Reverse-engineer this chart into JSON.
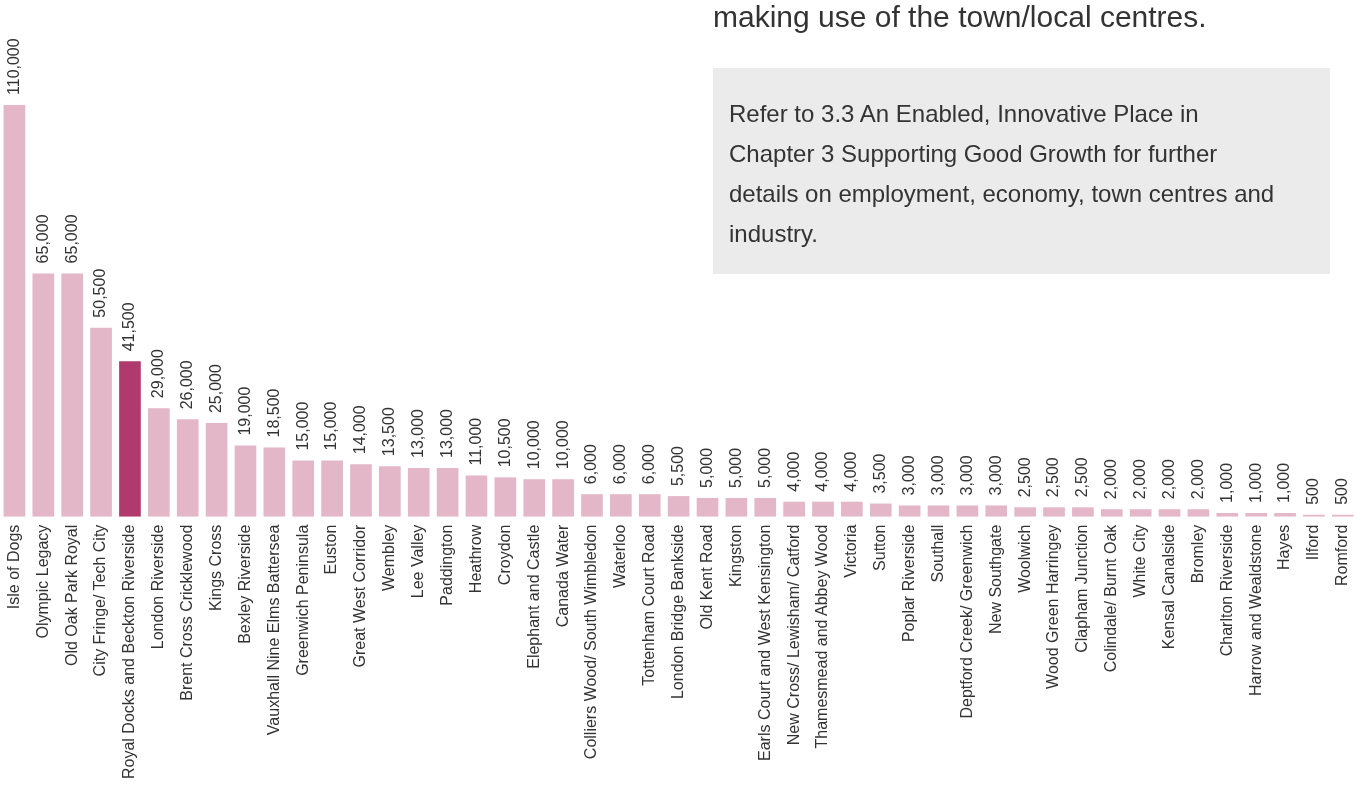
{
  "chart_data": {
    "type": "bar",
    "categories": [
      "Isle of Dogs",
      "Olympic Legacy",
      "Old Oak Park Royal",
      "City Fringe/ Tech City",
      "Royal Docks and Beckton Riverside",
      "London Riverside",
      "Brent Cross Cricklewood",
      "Kings Cross",
      "Bexley Riverside",
      "Vauxhall Nine Elms Battersea",
      "Greenwich Peninsula",
      "Euston",
      "Great West Corridor",
      "Wembley",
      "Lee Valley",
      "Paddington",
      "Heathrow",
      "Croydon",
      "Elephant and Castle",
      "Canada Water",
      "Colliers Wood/ South Wimbledon",
      "Waterloo",
      "Tottenham Court Road",
      "London Bridge Bankside",
      "Old Kent Road",
      "Kingston",
      "Earls Court and West Kensington",
      "New Cross/ Lewisham/ Catford",
      "Thamesmead and Abbey Wood",
      "Victoria",
      "Sutton",
      "Poplar Riverside",
      "Southall",
      "Deptford Creek/ Greenwich",
      "New Southgate",
      "Woolwich",
      "Wood Green Harringey",
      "Clapham Junction",
      "Colindale/ Burnt Oak",
      "White City",
      "Kensal Canalside",
      "Bromley",
      "Charlton Riverside",
      "Harrow and Wealdstone",
      "Hayes",
      "Ilford",
      "Romford"
    ],
    "values": [
      110000,
      65000,
      65000,
      50500,
      41500,
      29000,
      26000,
      25000,
      19000,
      18500,
      15000,
      15000,
      14000,
      13500,
      13000,
      13000,
      11000,
      10500,
      10000,
      10000,
      6000,
      6000,
      6000,
      5500,
      5000,
      5000,
      5000,
      4000,
      4000,
      4000,
      3500,
      3000,
      3000,
      3000,
      3000,
      2500,
      2500,
      2500,
      2000,
      2000,
      2000,
      2000,
      1000,
      1000,
      1000,
      500,
      500
    ],
    "colors": [
      "#e3b6c8",
      "#e3b6c8",
      "#e3b6c8",
      "#e3b6c8",
      "#b03a6e",
      "#e3b6c8",
      "#e3b6c8",
      "#e3b6c8",
      "#e3b6c8",
      "#e3b6c8",
      "#e3b6c8",
      "#e3b6c8",
      "#e3b6c8",
      "#e3b6c8",
      "#e3b6c8",
      "#e3b6c8",
      "#e3b6c8",
      "#e3b6c8",
      "#e3b6c8",
      "#e3b6c8",
      "#e3b6c8",
      "#e3b6c8",
      "#e3b6c8",
      "#e3b6c8",
      "#e3b6c8",
      "#e3b6c8",
      "#e3b6c8",
      "#e3b6c8",
      "#e3b6c8",
      "#e3b6c8",
      "#e3b6c8",
      "#e3b6c8",
      "#e3b6c8",
      "#e3b6c8",
      "#e3b6c8",
      "#e3b6c8",
      "#e3b6c8",
      "#e3b6c8",
      "#e3b6c8",
      "#e3b6c8",
      "#e3b6c8",
      "#e3b6c8",
      "#e3b6c8",
      "#e3b6c8",
      "#e3b6c8",
      "#e3b6c8",
      "#e3b6c8"
    ],
    "value_labels": [
      "110,000",
      "65,000",
      "65,000",
      "50,500",
      "41,500",
      "29,000",
      "26,000",
      "25,000",
      "19,000",
      "18,500",
      "15,000",
      "15,000",
      "14,000",
      "13,500",
      "13,000",
      "13,000",
      "11,000",
      "10,500",
      "10,000",
      "10,000",
      "6,000",
      "6,000",
      "6,000",
      "5,500",
      "5,000",
      "5,000",
      "5,000",
      "4,000",
      "4,000",
      "4,000",
      "3,500",
      "3,000",
      "3,000",
      "3,000",
      "3,000",
      "2,500",
      "2,500",
      "2,500",
      "2,000",
      "2,000",
      "2,000",
      "2,000",
      "1,000",
      "1,000",
      "1,000",
      "500",
      "500"
    ],
    "annotations": [
      "making use of the town/local centres.",
      "Refer to 3.3 An Enabled, Innovative Place in Chapter 3 Supporting Good Growth for further details on employment, economy, town centres and industry."
    ],
    "legend": false,
    "grid": false
  }
}
